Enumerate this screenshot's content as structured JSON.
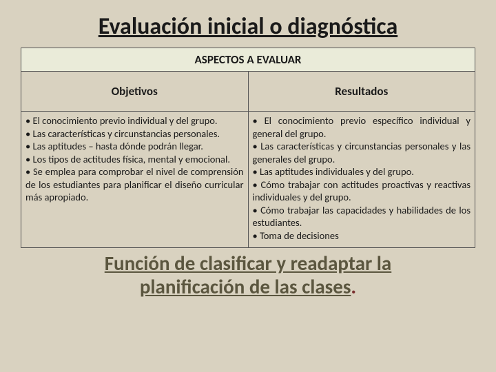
{
  "title": "Evaluación inicial o diagnóstica",
  "table": {
    "header_top": "ASPECTOS A EVALUAR",
    "col_left": "Objetivos",
    "col_right": "Resultados",
    "left_items": [
      "El conocimiento previo individual y del grupo.",
      "Las características y circunstancias personales.",
      "Las aptitudes – hasta dónde podrán llegar.",
      "Los tipos de actitudes física, mental y emocional.",
      "Se emplea para comprobar el nivel de comprensión de los estudiantes para planificar el diseño curricular más apropiado."
    ],
    "right_items": [
      "El conocimiento previo específico individual y general del grupo.",
      "Las características y circunstancias personales y las generales del grupo.",
      "Las aptitudes individuales y del grupo.",
      "Cómo trabajar con actitudes proactivas y reactivas individuales y del grupo.",
      "Cómo trabajar las capacidades y habilidades de los estudiantes.",
      "Toma de decisiones"
    ]
  },
  "footer_line1": "Función de clasificar y readaptar la",
  "footer_line2": "planificación de las clases",
  "colors": {
    "background": "#d9d2c0",
    "header_bg": "#eaebd9",
    "text": "#1a1a1a",
    "footer_text": "#5b563f",
    "dot": "#7a2f2f",
    "border": "#555555"
  },
  "typography": {
    "title_fontsize": 34,
    "header_fontsize": 17,
    "body_fontsize": 14.5,
    "footer_fontsize": 29,
    "font_family": "Calibri"
  }
}
